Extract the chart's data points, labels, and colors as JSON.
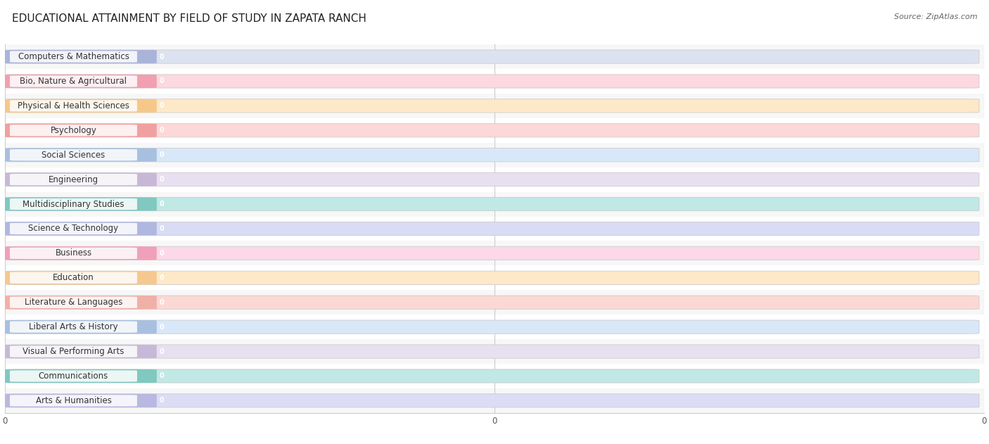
{
  "title": "EDUCATIONAL ATTAINMENT BY FIELD OF STUDY IN ZAPATA RANCH",
  "source": "Source: ZipAtlas.com",
  "categories": [
    "Computers & Mathematics",
    "Bio, Nature & Agricultural",
    "Physical & Health Sciences",
    "Psychology",
    "Social Sciences",
    "Engineering",
    "Multidisciplinary Studies",
    "Science & Technology",
    "Business",
    "Education",
    "Literature & Languages",
    "Liberal Arts & History",
    "Visual & Performing Arts",
    "Communications",
    "Arts & Humanities"
  ],
  "values": [
    0,
    0,
    0,
    0,
    0,
    0,
    0,
    0,
    0,
    0,
    0,
    0,
    0,
    0,
    0
  ],
  "bar_colors": [
    "#aab4d8",
    "#f0a0b0",
    "#f5c88a",
    "#f0a0a0",
    "#a8c0e0",
    "#c8b8d8",
    "#80c8c0",
    "#b0b8e0",
    "#f0a0b8",
    "#f5c890",
    "#f0b0a8",
    "#a8c0e0",
    "#c8b8d8",
    "#80c8c0",
    "#b8b8e0"
  ],
  "bar_bg_colors": [
    "#dde2f0",
    "#fcd8e0",
    "#fde8c8",
    "#fcd8d8",
    "#d8e8f8",
    "#e8e0f0",
    "#c0e8e4",
    "#d8dcf4",
    "#fcd8e8",
    "#fde8c8",
    "#fcd8d4",
    "#d8e8f8",
    "#e8e0f0",
    "#c0e8e4",
    "#dcdcf4"
  ],
  "title_fontsize": 11,
  "label_fontsize": 8.5,
  "value_label_color": "#ffffff",
  "bg_color": "#ffffff",
  "row_bg_odd": "#f7f7f7",
  "row_bg_even": "#ffffff",
  "grid_color": "#cccccc"
}
